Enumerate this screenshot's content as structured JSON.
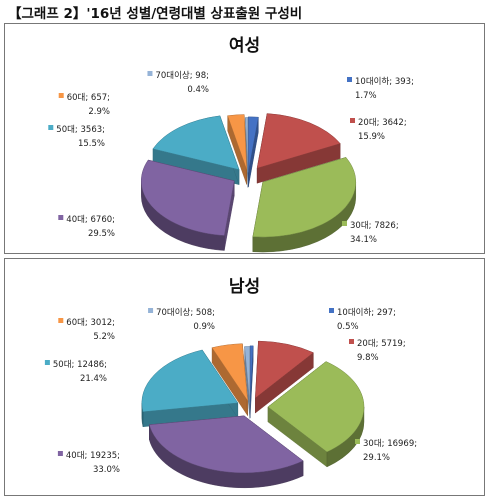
{
  "page": {
    "title": "【그래프 2】'16년 성별/연령대별 상표출원 구성비"
  },
  "chart_data": [
    {
      "type": "pie",
      "style": "exploded 3d pie",
      "title": "여성",
      "label_format": "category; value; percent",
      "series": [
        {
          "category": "10대이하",
          "value": 393,
          "percent": "1.7%",
          "color": "#4472C4"
        },
        {
          "category": "20대",
          "value": 3642,
          "percent": "15.9%",
          "color": "#C0504D"
        },
        {
          "category": "30대",
          "value": 7826,
          "percent": "34.1%",
          "color": "#9BBB59"
        },
        {
          "category": "40대",
          "value": 6760,
          "percent": "29.5%",
          "color": "#8064A2"
        },
        {
          "category": "50대",
          "value": 3563,
          "percent": "15.5%",
          "color": "#4BACC6"
        },
        {
          "category": "60대",
          "value": 657,
          "percent": "2.9%",
          "color": "#F79646"
        },
        {
          "category": "70대이상",
          "value": 98,
          "percent": "0.4%",
          "color": "#95B3D7"
        }
      ]
    },
    {
      "type": "pie",
      "style": "exploded 3d pie",
      "title": "남성",
      "label_format": "category; value; percent",
      "series": [
        {
          "category": "10대이하",
          "value": 297,
          "percent": "0.5%",
          "color": "#4472C4"
        },
        {
          "category": "20대",
          "value": 5719,
          "percent": "9.8%",
          "color": "#C0504D"
        },
        {
          "category": "30대",
          "value": 16969,
          "percent": "29.1%",
          "color": "#9BBB59"
        },
        {
          "category": "40대",
          "value": 19235,
          "percent": "33.0%",
          "color": "#8064A2"
        },
        {
          "category": "50대",
          "value": 12486,
          "percent": "21.4%",
          "color": "#4BACC6"
        },
        {
          "category": "60대",
          "value": 3012,
          "percent": "5.2%",
          "color": "#F79646"
        },
        {
          "category": "70대이상",
          "value": 508,
          "percent": "0.9%",
          "color": "#95B3D7"
        }
      ]
    }
  ]
}
